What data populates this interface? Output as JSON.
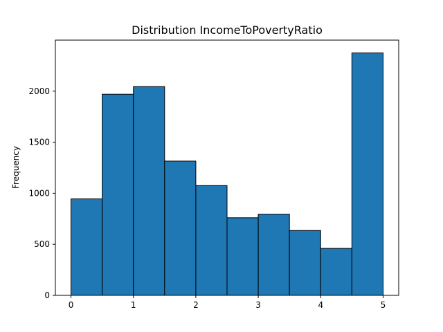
{
  "chart_data": {
    "type": "bar",
    "title": "Distribution IncomeToPovertyRatio",
    "xlabel": "",
    "ylabel": "Frequency",
    "bin_edges": [
      0,
      0.5,
      1.0,
      1.5,
      2.0,
      2.5,
      3.0,
      3.5,
      4.0,
      4.5,
      5.0
    ],
    "values": [
      945,
      1970,
      2045,
      1315,
      1075,
      760,
      795,
      635,
      460,
      2375
    ],
    "xlim": [
      -0.25,
      5.25
    ],
    "ylim": [
      0,
      2500
    ],
    "x_ticks": [
      0,
      1,
      2,
      3,
      4,
      5
    ],
    "y_ticks": [
      0,
      500,
      1000,
      1500,
      2000
    ],
    "bar_color": "#1f77b4",
    "edge_color": "#000000",
    "grid": false
  }
}
